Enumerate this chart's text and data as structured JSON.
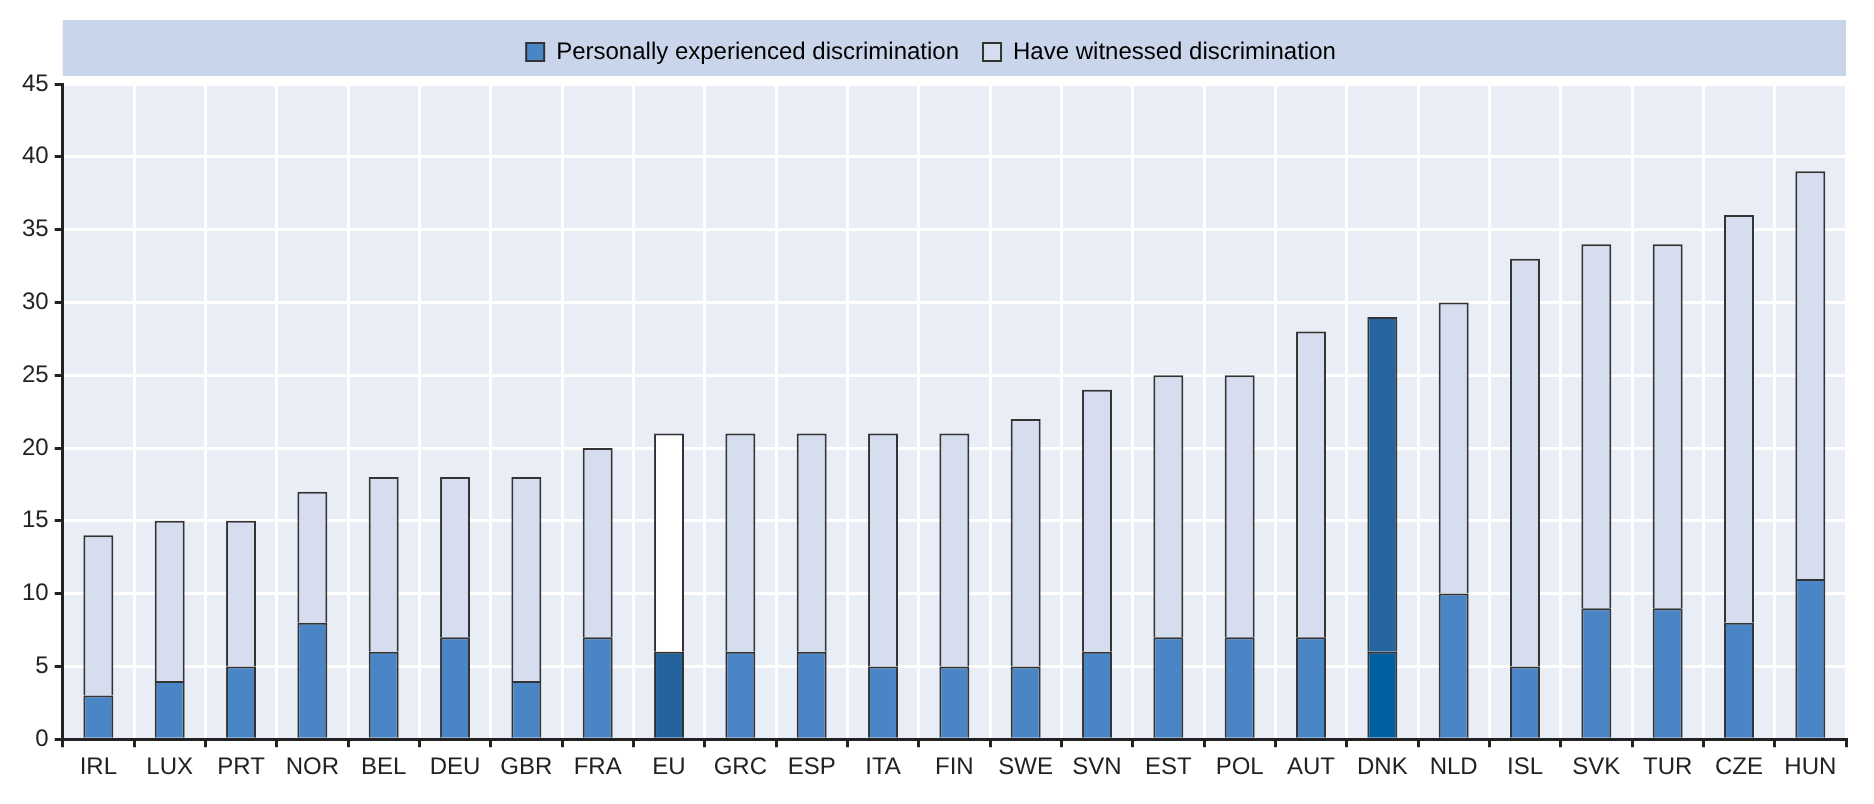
{
  "chart_data": {
    "type": "bar",
    "stacked": true,
    "categories": [
      "IRL",
      "LUX",
      "PRT",
      "NOR",
      "BEL",
      "DEU",
      "GBR",
      "FRA",
      "EU",
      "GRC",
      "ESP",
      "ITA",
      "FIN",
      "SWE",
      "SVN",
      "EST",
      "POL",
      "AUT",
      "DNK",
      "NLD",
      "ISL",
      "SVK",
      "TUR",
      "CZE",
      "HUN"
    ],
    "series": [
      {
        "name": "Personally experienced discrimination",
        "color": "#4a86c5",
        "colors": [
          "#4a86c5",
          "#4a86c5",
          "#4a86c5",
          "#4a86c5",
          "#4a86c5",
          "#4a86c5",
          "#4a86c5",
          "#4a86c5",
          "#24649e",
          "#4a86c5",
          "#4a86c5",
          "#4a86c5",
          "#4a86c5",
          "#4a86c5",
          "#4a86c5",
          "#4a86c5",
          "#4a86c5",
          "#4a86c5",
          "#0060a0",
          "#4a86c5",
          "#4a86c5",
          "#4a86c5",
          "#4a86c5",
          "#4a86c5",
          "#4a86c5"
        ],
        "values": [
          3,
          4,
          5,
          8,
          6,
          7,
          4,
          7,
          6,
          6,
          6,
          5,
          5,
          5,
          6,
          7,
          7,
          7,
          6,
          10,
          5,
          9,
          9,
          8,
          11
        ]
      },
      {
        "name": "Have witnessed discrimination",
        "color": "#d5ddef",
        "colors": [
          "#d5ddef",
          "#d5ddef",
          "#d5ddef",
          "#d5ddef",
          "#d5ddef",
          "#d5ddef",
          "#d5ddef",
          "#d5ddef",
          "#ffffff",
          "#d5ddef",
          "#d5ddef",
          "#d5ddef",
          "#d5ddef",
          "#d5ddef",
          "#d5ddef",
          "#d5ddef",
          "#d5ddef",
          "#d5ddef",
          "#2566a0",
          "#d5ddef",
          "#d5ddef",
          "#d5ddef",
          "#d5ddef",
          "#d5ddef",
          "#d5ddef"
        ],
        "values": [
          11,
          11,
          10,
          9,
          12,
          11,
          14,
          13,
          15,
          15,
          15,
          16,
          16,
          17,
          18,
          18,
          18,
          21,
          23,
          20,
          28,
          25,
          25,
          28,
          28
        ]
      }
    ],
    "ylim": [
      0,
      45
    ],
    "yticks": [
      0,
      5,
      10,
      15,
      20,
      25,
      30,
      35,
      40,
      45
    ],
    "grid": true,
    "legend": "top"
  }
}
